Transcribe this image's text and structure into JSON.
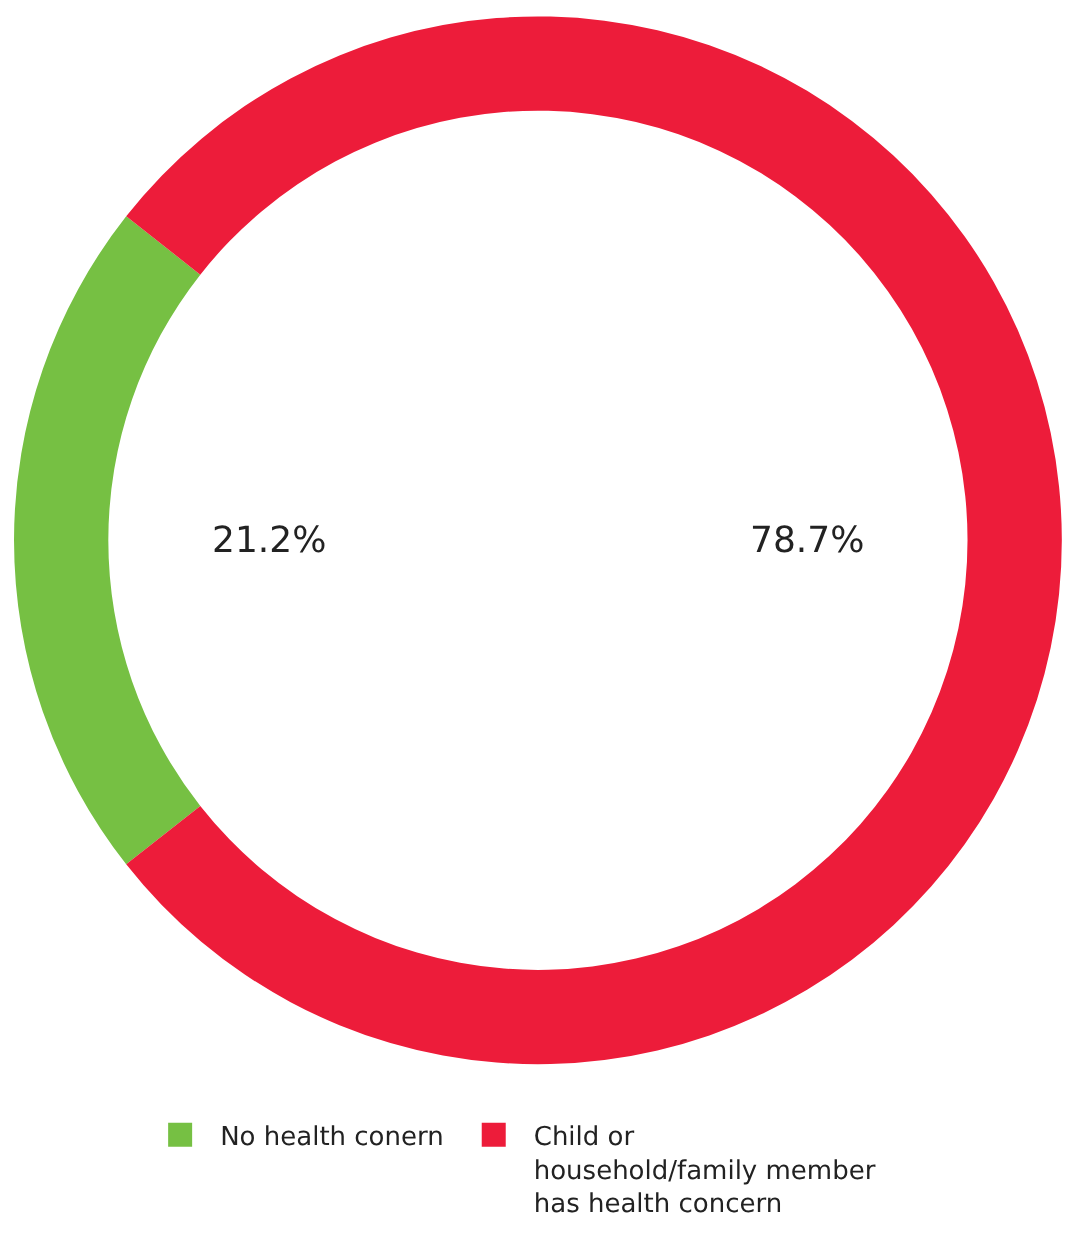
{
  "chart_data": {
    "type": "donut",
    "categories": [
      "No health conern",
      "Child or household/family member has health concern"
    ],
    "values": [
      21.2,
      78.7
    ],
    "colors": [
      "#76c043",
      "#ed1c3a"
    ],
    "value_labels": [
      "21.2%",
      "78.7%"
    ],
    "legend": "bottom"
  }
}
